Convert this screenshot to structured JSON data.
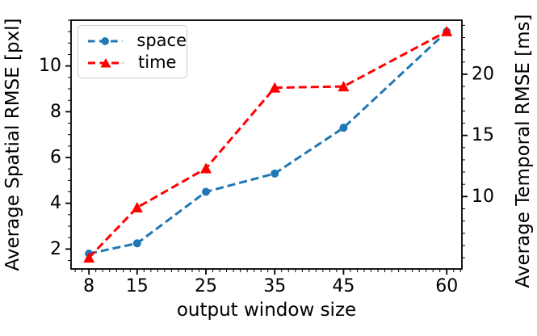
{
  "chart_data": {
    "type": "line",
    "title": "",
    "xlabel": "output window size",
    "ylabel_left": "Average Spatial RMSE [pxl]",
    "ylabel_right": "Average Temporal RMSE [ms]",
    "x": [
      8,
      15,
      25,
      35,
      45,
      60
    ],
    "series": [
      {
        "name": "space",
        "axis": "left",
        "color": "#1f77b4",
        "marker": "circle",
        "linestyle": "dashed",
        "values": [
          1.8,
          2.25,
          4.5,
          5.3,
          7.3,
          11.5
        ]
      },
      {
        "name": "time",
        "axis": "right",
        "color": "#ff0000",
        "marker": "triangle-up",
        "linestyle": "dashed",
        "values": [
          5.0,
          9.1,
          12.3,
          18.9,
          19.0,
          23.5
        ]
      }
    ],
    "axes": {
      "x": {
        "ticks": [
          8,
          15,
          25,
          35,
          45,
          60
        ],
        "minor_step": 1,
        "lim": [
          5.4,
          62.2
        ]
      },
      "y_left": {
        "ticks": [
          2,
          4,
          6,
          8,
          10
        ],
        "minor_step": 0.5,
        "lim": [
          1.13,
          12.0
        ]
      },
      "y_right": {
        "ticks": [
          10,
          15,
          20
        ],
        "minor_step": 1,
        "lim": [
          4.08,
          24.42
        ]
      }
    },
    "legend": {
      "position": "upper-left",
      "items": [
        "space",
        "time"
      ]
    },
    "grid": false,
    "background": "#ffffff",
    "spine_color": "#000000"
  }
}
